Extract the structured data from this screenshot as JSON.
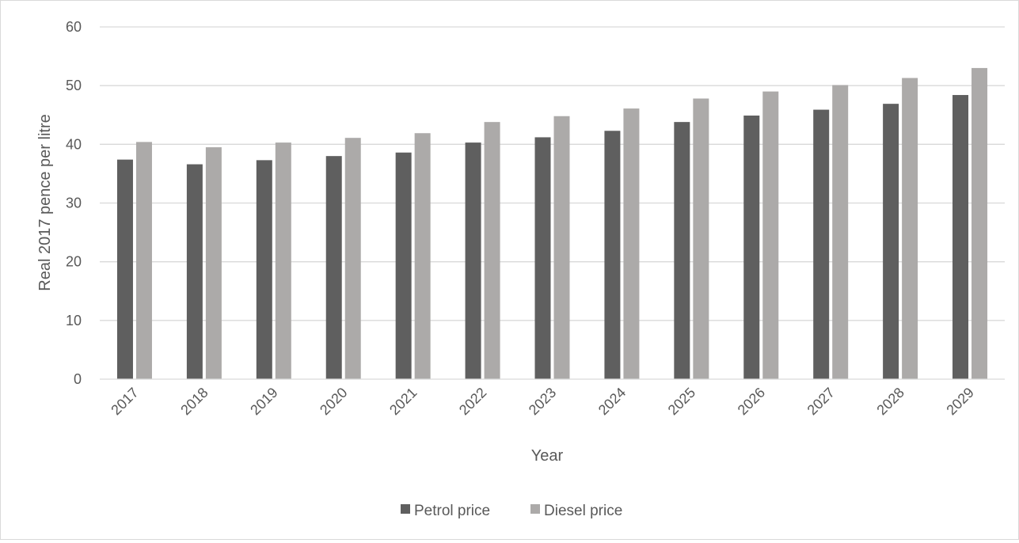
{
  "chart_data": {
    "type": "bar",
    "title": "",
    "xlabel": "Year",
    "ylabel": "Real 2017 pence per litre",
    "ylim": [
      0,
      60
    ],
    "yticks": [
      0,
      10,
      20,
      30,
      40,
      50,
      60
    ],
    "grid": true,
    "legend_position": "bottom",
    "categories": [
      "2017",
      "2018",
      "2019",
      "2020",
      "2021",
      "2022",
      "2023",
      "2024",
      "2025",
      "2026",
      "2027",
      "2028",
      "2029"
    ],
    "series": [
      {
        "name": "Petrol price",
        "color": "#5f5f5f",
        "values": [
          37.4,
          36.6,
          37.3,
          38.0,
          38.6,
          40.3,
          41.2,
          42.3,
          43.8,
          44.9,
          45.9,
          46.9,
          48.4
        ]
      },
      {
        "name": "Diesel price",
        "color": "#acaaa9",
        "values": [
          40.4,
          39.5,
          40.3,
          41.1,
          41.9,
          43.8,
          44.8,
          46.1,
          47.8,
          49.0,
          50.1,
          51.3,
          53.0
        ]
      }
    ]
  }
}
